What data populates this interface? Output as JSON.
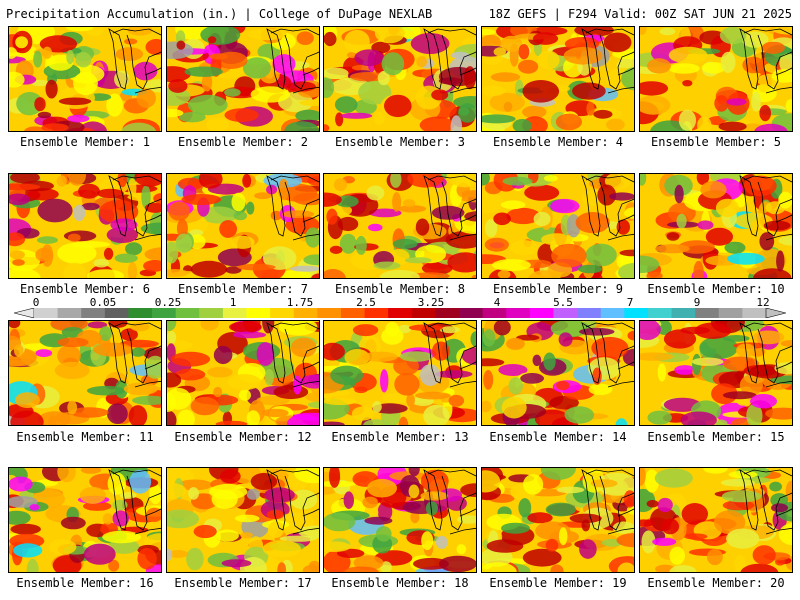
{
  "header": {
    "title": "Precipitation Accumulation (in.) | College of DuPage NEXLAB",
    "run_info": "18Z GEFS | F294 Valid: 00Z SAT JUN 21 2025"
  },
  "members": [
    {
      "label": "Ensemble Member: 1"
    },
    {
      "label": "Ensemble Member: 2"
    },
    {
      "label": "Ensemble Member: 3"
    },
    {
      "label": "Ensemble Member: 4"
    },
    {
      "label": "Ensemble Member: 5"
    },
    {
      "label": "Ensemble Member: 6"
    },
    {
      "label": "Ensemble Member: 7"
    },
    {
      "label": "Ensemble Member: 8"
    },
    {
      "label": "Ensemble Member: 9"
    },
    {
      "label": "Ensemble Member: 10"
    },
    {
      "label": "Ensemble Member: 11"
    },
    {
      "label": "Ensemble Member: 12"
    },
    {
      "label": "Ensemble Member: 13"
    },
    {
      "label": "Ensemble Member: 14"
    },
    {
      "label": "Ensemble Member: 15"
    },
    {
      "label": "Ensemble Member: 16"
    },
    {
      "label": "Ensemble Member: 17"
    },
    {
      "label": "Ensemble Member: 18"
    },
    {
      "label": "Ensemble Member: 19"
    },
    {
      "label": "Ensemble Member: 20"
    }
  ],
  "colorbar": {
    "tick_labels": [
      "0",
      "0.05",
      "0.25",
      "1",
      "1.75",
      "2.5",
      "3.25",
      "4",
      "5.5",
      "7",
      "9",
      "12"
    ],
    "colors": [
      "#d0d0d0",
      "#a8a8a8",
      "#808080",
      "#606060",
      "#2f8f2f",
      "#3fa33f",
      "#70c040",
      "#a0d040",
      "#e8f040",
      "#ffff00",
      "#ffd700",
      "#ffb000",
      "#ff9000",
      "#ff6000",
      "#ff3000",
      "#e00000",
      "#c00000",
      "#a00020",
      "#900050",
      "#c00080",
      "#e000c0",
      "#ff00ff",
      "#c060ff",
      "#8080ff",
      "#60c0ff",
      "#00e0ff",
      "#40d0d0",
      "#40b0b0",
      "#808080",
      "#a0a0a0",
      "#c0c0c0"
    ]
  }
}
